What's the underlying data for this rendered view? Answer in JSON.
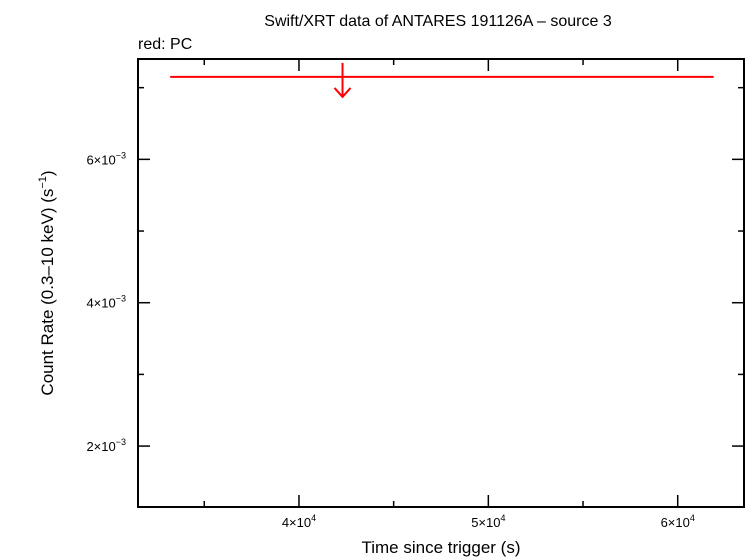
{
  "chart_data": {
    "type": "scatter",
    "title": "Swift/XRT data of ANTARES 191126A – source 3",
    "subtitle": "red: PC",
    "xlabel": "Time since trigger (s)",
    "ylabel_main": "Count Rate (0.3–10 keV) (s",
    "ylabel_sup": "−1",
    "ylabel_end": ")",
    "xlim": [
      31500,
      63500
    ],
    "ylim": [
      0.00115,
      0.0074
    ],
    "x_ticks": [
      {
        "value": 40000,
        "mantissa": "4×10",
        "exp": "4"
      },
      {
        "value": 50000,
        "mantissa": "5×10",
        "exp": "4"
      },
      {
        "value": 60000,
        "mantissa": "6×10",
        "exp": "4"
      }
    ],
    "x_minor_ticks": [
      35000,
      45000,
      55000
    ],
    "y_ticks": [
      {
        "value": 0.002,
        "mantissa": "2×10",
        "exp": "−3"
      },
      {
        "value": 0.004,
        "mantissa": "4×10",
        "exp": "−3"
      },
      {
        "value": 0.006,
        "mantissa": "6×10",
        "exp": "−3"
      }
    ],
    "y_minor_ticks": [
      0.003,
      0.005,
      0.007
    ],
    "series": [
      {
        "color": "#ff0000",
        "upper_limits": [
          {
            "x": 42300,
            "xerr_low": 33200,
            "xerr_high": 61900,
            "y": 0.00715
          }
        ]
      }
    ]
  }
}
